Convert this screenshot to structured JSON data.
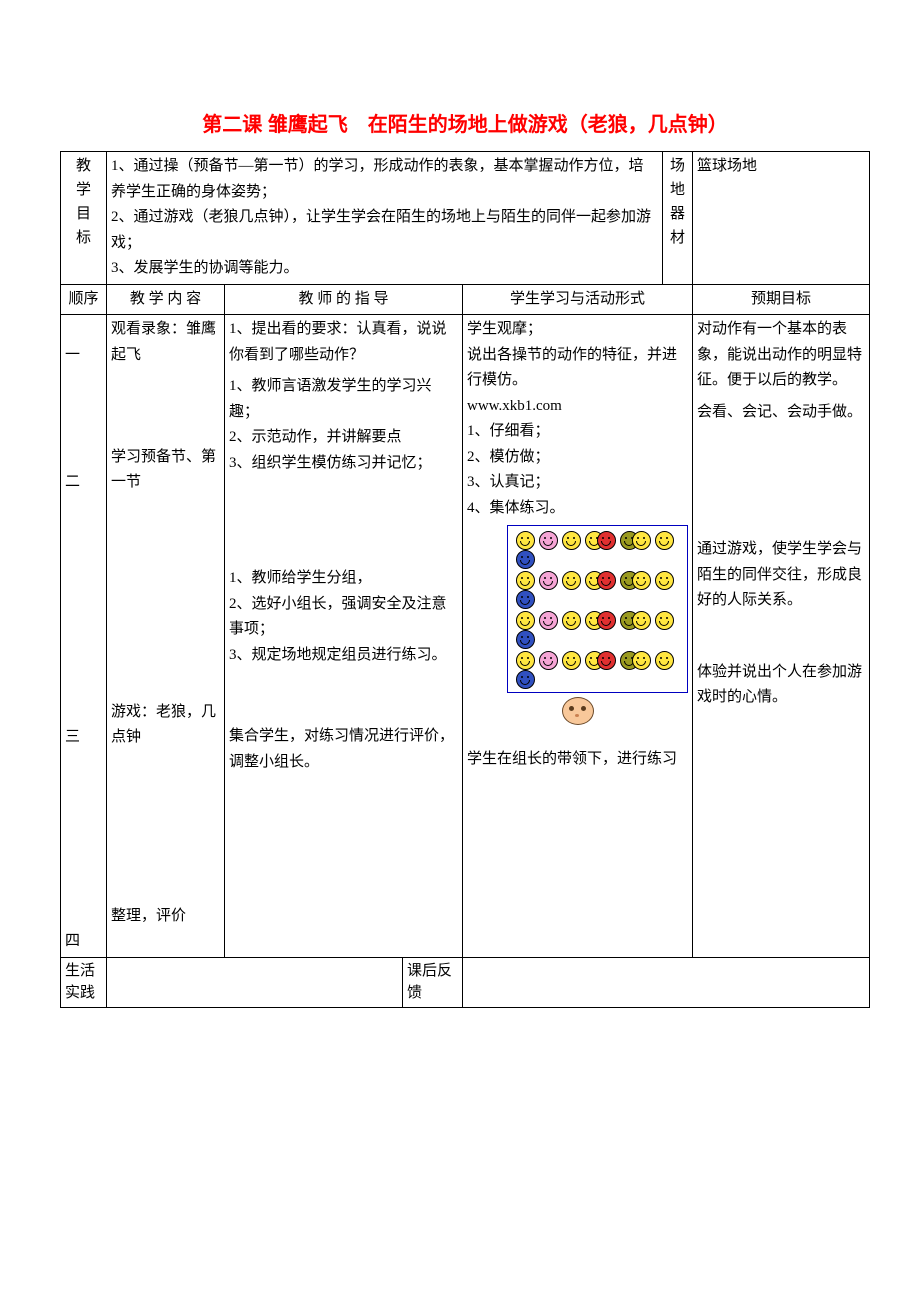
{
  "title": "第二课 雏鹰起飞　在陌生的场地上做游戏（老狼，几点钟）",
  "row1": {
    "label": "教学目标",
    "goals": "1、通过操（预备节—第一节）的学习，形成动作的表象，基本掌握动作方位，培养学生正确的身体姿势；\n2、通过游戏（老狼几点钟），让学生学会在陌生的场地上与陌生的同伴一起参加游戏；\n3、发展学生的协调等能力。",
    "equipLabel": "场地器材",
    "equip": "篮球场地"
  },
  "hdr": {
    "c1": "顺序",
    "c2": "教 学 内 容",
    "c3": "教 师 的 指 导",
    "c4": "学生学习与活动形式",
    "c5": "预期目标"
  },
  "sec": {
    "order1": "一",
    "order2": "二",
    "order3": "三",
    "order4": "四",
    "content": "观看录象：雏鹰起飞\n\n\n\n学习预备节、第一节\n\n\n\n\n\n\n\n\n游戏：老狼，几点钟\n\n\n\n\n\n\n整理，评价",
    "teacher1": "1、提出看的要求：认真看，说说你看到了哪些动作？",
    "teacher2": "1、教师言语激发学生的学习兴趣；\n2、示范动作，并讲解要点\n3、组织学生模仿练习并记忆；",
    "teacher3": "1、教师给学生分组，\n2、选好小组长，强调安全及注意事项；\n3、规定场地规定组员进行练习。",
    "teacher4": "集合学生，对练习情况进行评价，调整小组长。",
    "student1": "学生观摩；\n说出各操节的动作的特征，并进行模仿。\nwww.xkb1.com",
    "student2": "1、仔细看；\n2、模仿做；\n3、认真记；\n4、集体练习。",
    "student3": "学生在组长的带领下，进行练习",
    "goal1": "对动作有一个基本的表象，能说出动作的明显特征。便于以后的教学。",
    "goal2": "会看、会记、会动手做。",
    "goal3": "通过游戏，使学生学会与陌生的同伴交往，形成良好的人际关系。",
    "goal4": "体验并说出个人在参加游戏时的心情。"
  },
  "bottom": {
    "left": "生活实践",
    "mid": "课后反馈"
  },
  "smiley": {
    "colors": {
      "yellow": "#ffe640",
      "pink": "#f5a5d5",
      "red": "#e03030",
      "olive": "#9a9a20",
      "blue": "#3050c0"
    },
    "rows": [
      [
        "yellow",
        "pink",
        "yellow",
        "yellow",
        "red",
        "olive",
        "yellow",
        "yellow",
        "blue"
      ],
      [
        "yellow",
        "pink",
        "yellow",
        "yellow",
        "red",
        "olive",
        "yellow",
        "yellow",
        "blue"
      ],
      [
        "yellow",
        "pink",
        "yellow",
        "yellow",
        "red",
        "olive",
        "yellow",
        "yellow",
        "blue"
      ],
      [
        "yellow",
        "pink",
        "yellow",
        "yellow",
        "red",
        "olive",
        "yellow",
        "yellow",
        "blue"
      ]
    ]
  }
}
